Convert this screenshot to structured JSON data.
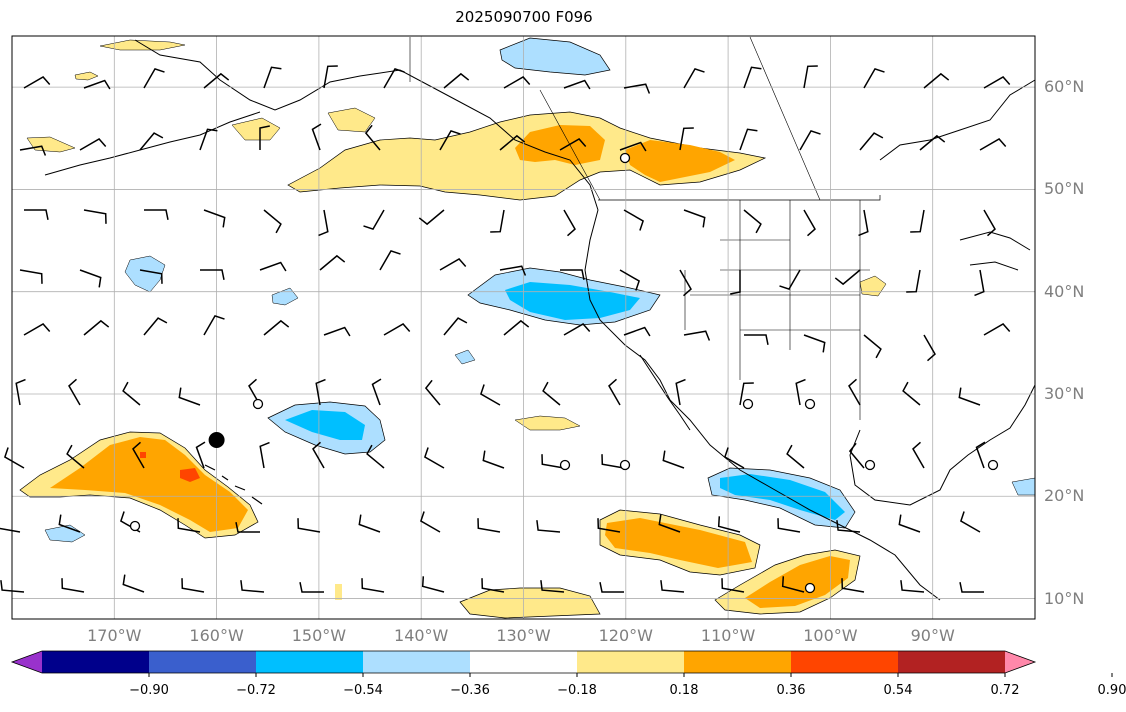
{
  "title": "2025090700 F096",
  "lat_labels": [
    "60°N",
    "50°N",
    "40°N",
    "30°N",
    "20°N",
    "10°N"
  ],
  "lon_labels": [
    "170°W",
    "160°W",
    "150°W",
    "140°W",
    "130°W",
    "120°W",
    "110°W",
    "100°W",
    "90°W"
  ],
  "colorbar": {
    "ticks": [
      "−0.90",
      "−0.72",
      "−0.54",
      "−0.36",
      "−0.18",
      "0.18",
      "0.36",
      "0.54",
      "0.72",
      "0.90"
    ],
    "colors": [
      "#9932CC",
      "#00008B",
      "#3A5FCD",
      "#00BFFF",
      "#ADDFFF",
      "#FFFFFF",
      "#FFE98A",
      "#FFA500",
      "#FF4500",
      "#B22222",
      "#FF88AA"
    ]
  },
  "map": {
    "projection": "PlateCarree",
    "extent": {
      "lon_min": -180,
      "lon_max": -80,
      "lat_min": 8,
      "lat_max": 65
    },
    "gridlines": true,
    "land_outline_color": "#000000",
    "marker": {
      "lon": -160,
      "lat": 25.5,
      "color": "#000000"
    }
  }
}
